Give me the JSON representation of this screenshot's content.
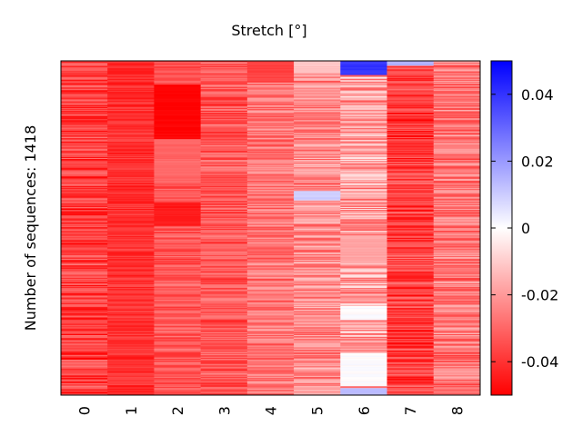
{
  "chart_data": {
    "type": "heatmap",
    "title": "Stretch [°]",
    "ylabel": "Number of sequences: 1418",
    "xlabel": "",
    "categories": [
      "0",
      "1",
      "2",
      "3",
      "4",
      "5",
      "6",
      "7",
      "8"
    ],
    "row_count": 1418,
    "colorbar": {
      "range": [
        -0.05,
        0.05
      ],
      "ticks": [
        0.04,
        0.02,
        0,
        -0.02,
        -0.04
      ],
      "tick_labels": [
        "0.04",
        "0.02",
        "0",
        "-0.02",
        "-0.04"
      ],
      "colors": {
        "low": "#ff0000",
        "mid": "#ffffff",
        "high": "#0000ff"
      }
    },
    "column_profiles": [
      {
        "column": "0",
        "mean": -0.038,
        "spread": 0.012,
        "blocks": []
      },
      {
        "column": "1",
        "mean": -0.041,
        "spread": 0.006,
        "blocks": []
      },
      {
        "column": "2",
        "mean": -0.033,
        "spread": 0.008,
        "blocks": [
          {
            "from_row": 100,
            "to_row": 330,
            "value": -0.05
          },
          {
            "from_row": 330,
            "to_row": 520,
            "value": -0.03
          },
          {
            "from_row": 600,
            "to_row": 700,
            "value": -0.045
          }
        ]
      },
      {
        "column": "3",
        "mean": -0.033,
        "spread": 0.01,
        "blocks": []
      },
      {
        "column": "4",
        "mean": -0.027,
        "spread": 0.01,
        "blocks": [
          {
            "from_row": 0,
            "to_row": 90,
            "value": -0.037
          }
        ]
      },
      {
        "column": "5",
        "mean": -0.023,
        "spread": 0.012,
        "blocks": [
          {
            "from_row": 0,
            "to_row": 50,
            "value": -0.012
          },
          {
            "from_row": 550,
            "to_row": 590,
            "value": 0.01
          }
        ]
      },
      {
        "column": "6",
        "mean": -0.02,
        "spread": 0.016,
        "blocks": [
          {
            "from_row": 0,
            "to_row": 60,
            "value": 0.04
          },
          {
            "from_row": 740,
            "to_row": 860,
            "value": -0.018
          },
          {
            "from_row": 1040,
            "to_row": 1100,
            "value": 0.0
          },
          {
            "from_row": 1240,
            "to_row": 1380,
            "value": 0.0
          },
          {
            "from_row": 1385,
            "to_row": 1418,
            "value": 0.012
          }
        ]
      },
      {
        "column": "7",
        "mean": -0.038,
        "spread": 0.012,
        "blocks": [
          {
            "from_row": 0,
            "to_row": 20,
            "value": 0.015
          }
        ]
      },
      {
        "column": "8",
        "mean": -0.027,
        "spread": 0.012,
        "blocks": []
      }
    ]
  }
}
